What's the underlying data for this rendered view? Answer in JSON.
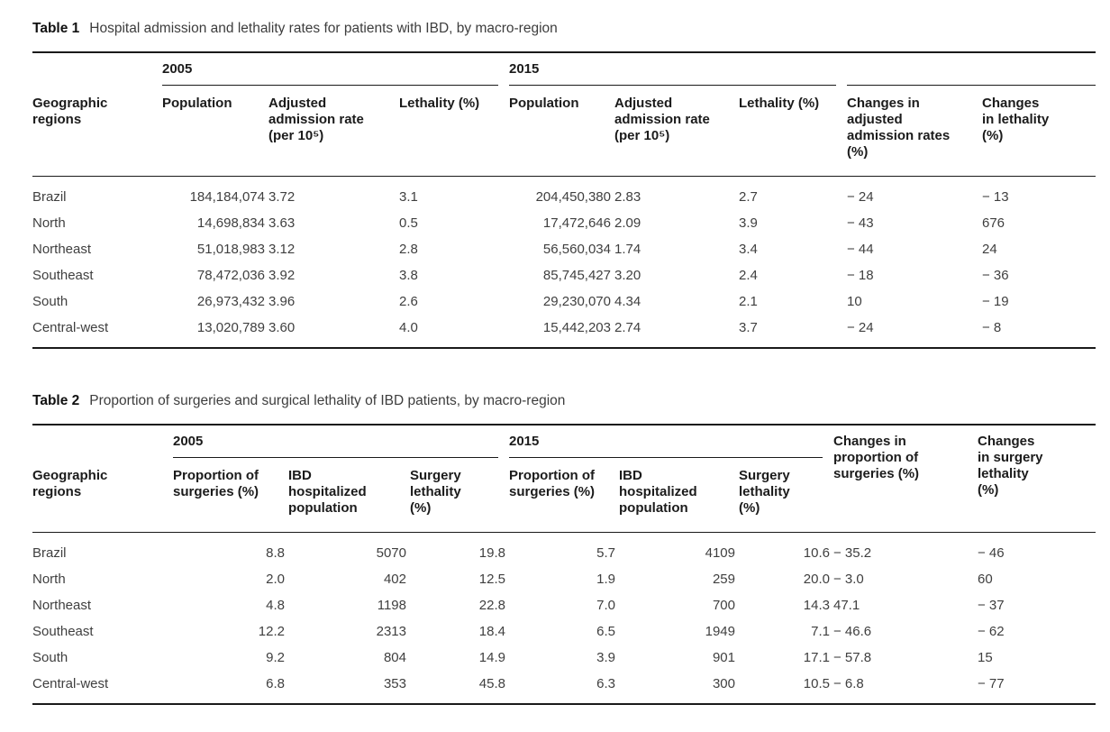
{
  "page": {
    "background": "#ffffff",
    "text_color": "#3a3a3a",
    "rule_color": "#1a1a1a"
  },
  "table1": {
    "label": "Table 1",
    "caption": "Hospital admission and lethality rates for patients with IBD, by macro-region",
    "groups": [
      "2005",
      "2015"
    ],
    "headers": [
      "Geographic regions",
      "Population",
      "Adjusted admission rate (per 10⁵)",
      "Lethality (%)",
      "Population",
      "Adjusted admission rate (per 10⁵)",
      "Lethality (%)",
      "Changes in adjusted admission rates (%)",
      "Changes in lethality (%)"
    ],
    "rows": [
      [
        "Brazil",
        "184,184,074",
        "3.72",
        "3.1",
        "204,450,380",
        "2.83",
        "2.7",
        "− 24",
        "− 13"
      ],
      [
        "North",
        "14,698,834",
        "3.63",
        "0.5",
        "17,472,646",
        "2.09",
        "3.9",
        "− 43",
        "676"
      ],
      [
        "Northeast",
        "51,018,983",
        "3.12",
        "2.8",
        "56,560,034",
        "1.74",
        "3.4",
        "− 44",
        "24"
      ],
      [
        "Southeast",
        "78,472,036",
        "3.92",
        "3.8",
        "85,745,427",
        "3.20",
        "2.4",
        "− 18",
        "− 36"
      ],
      [
        "South",
        "26,973,432",
        "3.96",
        "2.6",
        "29,230,070",
        "4.34",
        "2.1",
        "10",
        "− 19"
      ],
      [
        "Central-west",
        "13,020,789",
        "3.60",
        "4.0",
        "15,442,203",
        "2.74",
        "3.7",
        "− 24",
        "− 8"
      ]
    ]
  },
  "table2": {
    "label": "Table 2",
    "caption": "Proportion of surgeries and surgical lethality of IBD patients, by macro-region",
    "groups": [
      "2005",
      "2015"
    ],
    "headers": [
      "Geographic regions",
      "Proportion of surgeries (%)",
      "IBD hospitalized population",
      "Surgery lethality (%)",
      "Proportion of surgeries (%)",
      "IBD hospitalized population",
      "Surgery lethality (%)",
      "Changes in proportion of surgeries (%)",
      "Changes in surgery lethality (%)"
    ],
    "rows": [
      [
        "Brazil",
        "8.8",
        "5070",
        "19.8",
        "5.7",
        "4109",
        "10.6",
        "− 35.2",
        "− 46"
      ],
      [
        "North",
        "2.0",
        "402",
        "12.5",
        "1.9",
        "259",
        "20.0",
        "− 3.0",
        "60"
      ],
      [
        "Northeast",
        "4.8",
        "1198",
        "22.8",
        "7.0",
        "700",
        "14.3",
        "47.1",
        "− 37"
      ],
      [
        "Southeast",
        "12.2",
        "2313",
        "18.4",
        "6.5",
        "1949",
        "7.1",
        "− 46.6",
        "− 62"
      ],
      [
        "South",
        "9.2",
        "804",
        "14.9",
        "3.9",
        "901",
        "17.1",
        "− 57.8",
        "15"
      ],
      [
        "Central-west",
        "6.8",
        "353",
        "45.8",
        "6.3",
        "300",
        "10.5",
        "− 6.8",
        "− 77"
      ]
    ]
  }
}
